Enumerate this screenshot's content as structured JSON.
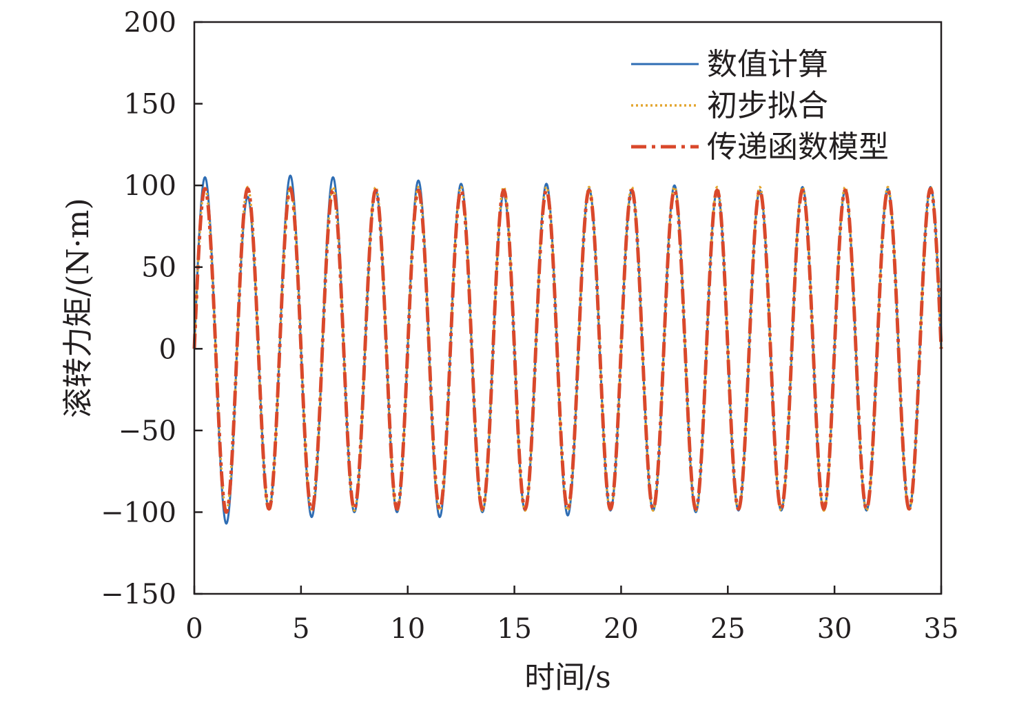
{
  "chart_data": {
    "type": "line",
    "title": "",
    "xlabel": "时间/s",
    "ylabel": "滚转力矩/(N·m)",
    "xlim": [
      0,
      35
    ],
    "ylim": [
      -150,
      200
    ],
    "x_ticks": [
      0,
      5,
      10,
      15,
      20,
      25,
      30,
      35
    ],
    "y_ticks": [
      -150,
      -100,
      -50,
      0,
      50,
      100,
      150,
      200
    ],
    "x_tick_labels": [
      "0",
      "5",
      "10",
      "15",
      "20",
      "25",
      "30",
      "35"
    ],
    "y_tick_labels": [
      "−150",
      "−100",
      "−50",
      "0",
      "50",
      "100",
      "150",
      "200"
    ],
    "grid": false,
    "legend_position": "top-right",
    "signal": {
      "period_s": 2.0,
      "start_s": 0
    },
    "series": [
      {
        "name": "数值计算",
        "style": "solid",
        "color": "#2e6db4",
        "peaks": [
          105,
          93,
          106,
          105,
          97,
          103,
          101,
          95,
          101,
          98,
          97,
          100,
          97,
          97,
          99,
          97,
          98,
          99
        ],
        "troughs": [
          -107,
          -98,
          -103,
          -100,
          -100,
          -103,
          -100,
          -99,
          -102,
          -99,
          -99,
          -100,
          -99,
          -99,
          -99,
          -99,
          -98,
          -99
        ]
      },
      {
        "name": "初步拟合",
        "style": "dotted",
        "color": "#e3a52e",
        "peaks": [
          99,
          99,
          99,
          99,
          99,
          99,
          99,
          99,
          99,
          99,
          99,
          99,
          99,
          99,
          99,
          99,
          99,
          99
        ],
        "troughs": [
          -99,
          -99,
          -99,
          -99,
          -99,
          -99,
          -99,
          -99,
          -99,
          -99,
          -99,
          -99,
          -99,
          -99,
          -99,
          -99,
          -99,
          -99
        ]
      },
      {
        "name": "传递函数模型",
        "style": "dashdot",
        "color": "#d9482b",
        "peaks": [
          98,
          98,
          98,
          97,
          97,
          97,
          97,
          97,
          97,
          97,
          97,
          97,
          97,
          97,
          97,
          97,
          97,
          98
        ],
        "troughs": [
          -100,
          -98,
          -99,
          -98,
          -98,
          -98,
          -98,
          -98,
          -98,
          -98,
          -98,
          -98,
          -98,
          -98,
          -98,
          -98,
          -98,
          -98
        ]
      }
    ]
  }
}
